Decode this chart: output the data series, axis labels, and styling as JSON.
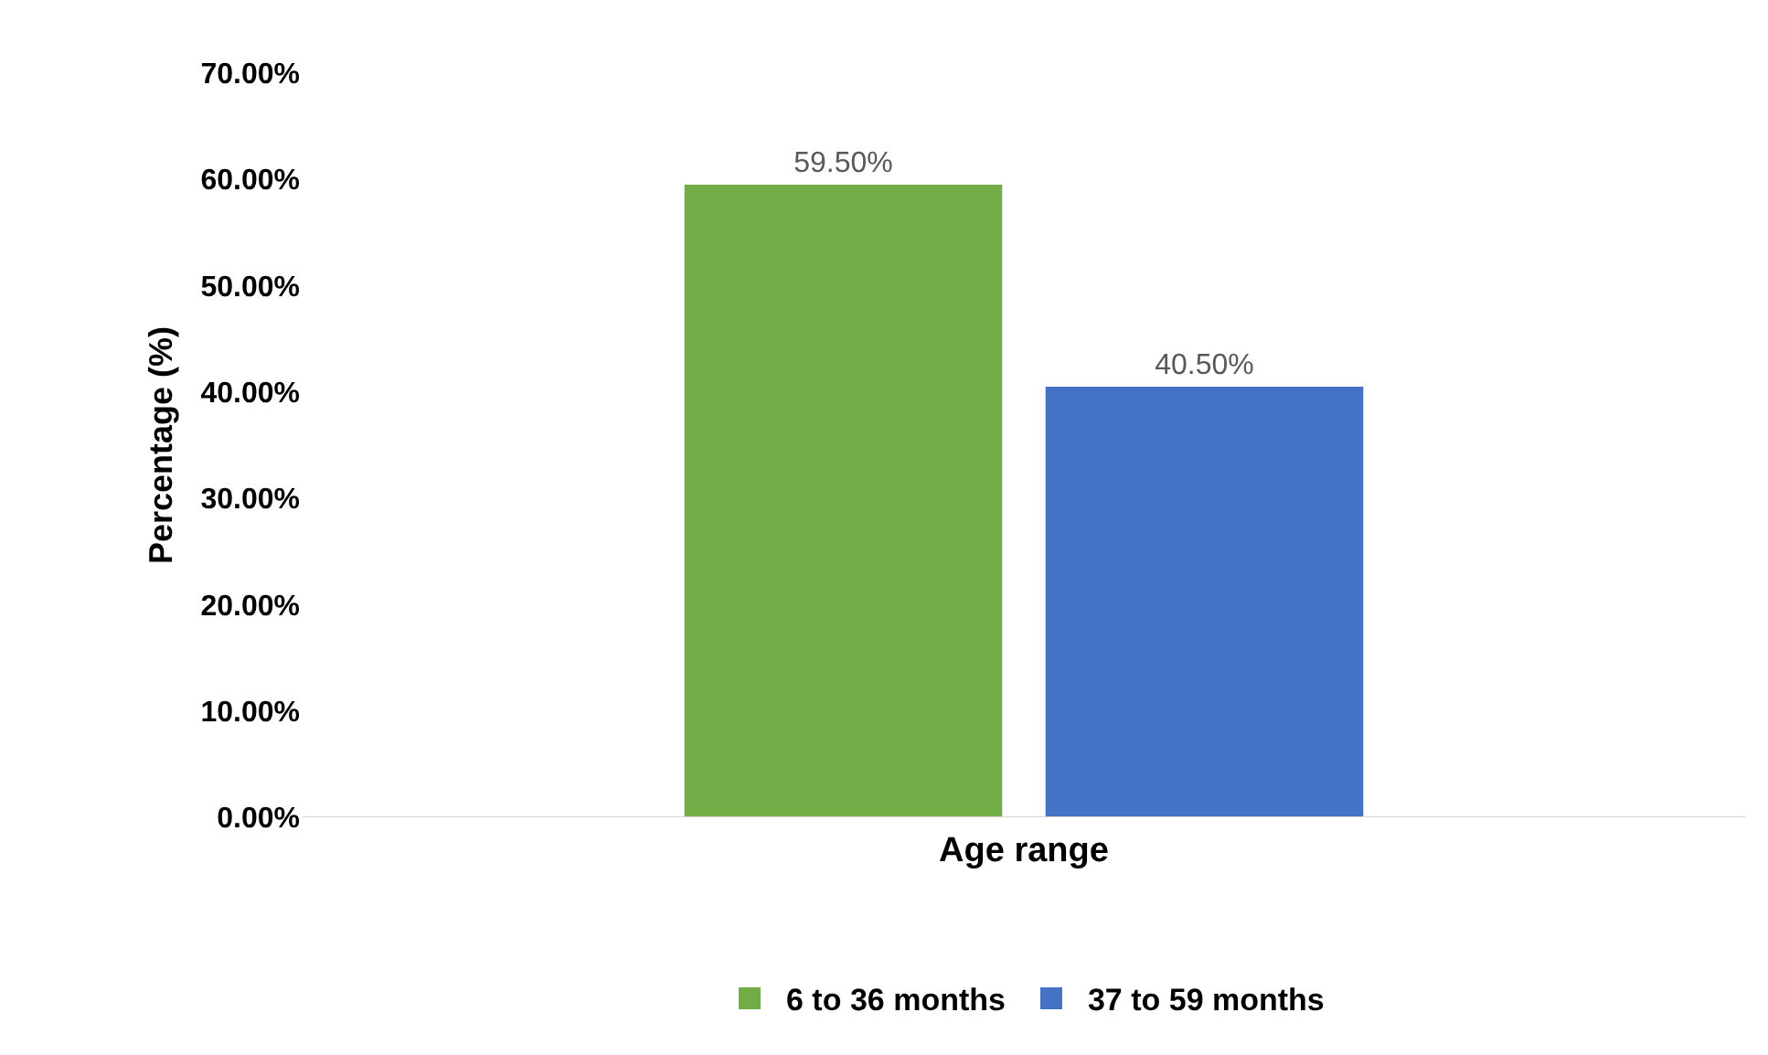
{
  "chart_data": {
    "type": "bar",
    "xlabel": "Age range",
    "ylabel": "Percentage (%)",
    "categories": [
      null
    ],
    "series": [
      {
        "name": "6 to 36 months",
        "color": "#70ad47",
        "values": [
          59.5
        ],
        "value_labels": [
          "59.50%"
        ]
      },
      {
        "name": "37 to 59 months",
        "color": "#4472c4",
        "values": [
          40.5
        ],
        "value_labels": [
          "40.50%"
        ]
      }
    ],
    "ylim": [
      0,
      70
    ],
    "yticks": [
      {
        "value": 0,
        "label": "0.00%"
      },
      {
        "value": 10,
        "label": "10.00%"
      },
      {
        "value": 20,
        "label": "20.00%"
      },
      {
        "value": 30,
        "label": "30.00%"
      },
      {
        "value": 40,
        "label": "40.00%"
      },
      {
        "value": 50,
        "label": "50.00%"
      },
      {
        "value": 60,
        "label": "60.00%"
      },
      {
        "value": 70,
        "label": "70.00%"
      }
    ],
    "grid": false,
    "legend": "bottom"
  }
}
